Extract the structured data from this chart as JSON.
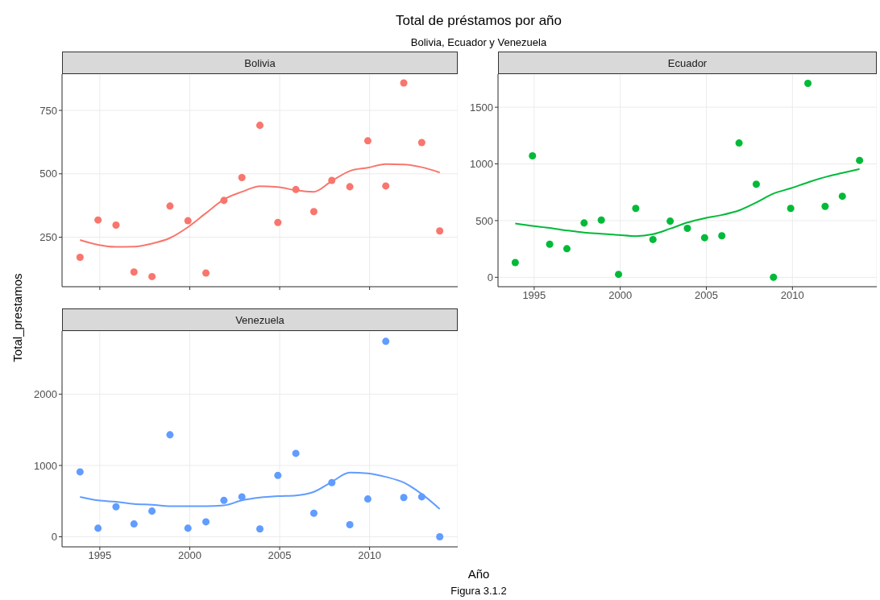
{
  "chart_data": [
    {
      "type": "other",
      "title": "Total de préstamos por año",
      "subtitle": "Bolivia, Ecuador y Venezuela",
      "xlabel": "Año",
      "ylabel": "Total_prestamos",
      "annotations": [
        "Figura 3.1.2"
      ]
    },
    {
      "type": "scatter",
      "title": "Bolivia",
      "x": [
        1993.9,
        1994.9,
        1995.9,
        1996.9,
        1997.9,
        1998.9,
        1999.9,
        2000.9,
        2001.9,
        2002.9,
        2003.9,
        2004.9,
        2005.9,
        2006.9,
        2007.9,
        2008.9,
        2009.9,
        2010.9,
        2011.9,
        2012.9,
        2013.9
      ],
      "xlim": [
        1992.9,
        2014.9
      ],
      "xticks": [
        1995,
        2000,
        2005,
        2010
      ],
      "ylim": [
        55,
        893
      ],
      "yticks": [
        250,
        500,
        750
      ],
      "grid": true,
      "marker": "circle",
      "tick_labels": "y",
      "series": [
        {
          "color": "#f8766d",
          "values": [
            171,
            318,
            298,
            113,
            95,
            373,
            315,
            109,
            395,
            485,
            691,
            308,
            438,
            351,
            474,
            449,
            630,
            452,
            858,
            623,
            275
          ]
        },
        {
          "type": "line",
          "marker": "none",
          "color": "#f8766d",
          "values": [
            239,
            220,
            212,
            213,
            225,
            247,
            290,
            345,
            399,
            429,
            451,
            448,
            435,
            429,
            472,
            511,
            524,
            538,
            537,
            526,
            505
          ]
        }
      ]
    },
    {
      "type": "scatter",
      "title": "Ecuador",
      "x": [
        1993.9,
        1994.9,
        1995.9,
        1996.9,
        1997.9,
        1998.9,
        1999.9,
        2000.9,
        2001.9,
        2002.9,
        2003.9,
        2004.9,
        2005.9,
        2006.9,
        2007.9,
        2008.9,
        2009.9,
        2010.9,
        2011.9,
        2012.9,
        2013.9
      ],
      "xlim": [
        1992.9,
        2014.9
      ],
      "xticks": [
        1995,
        2000,
        2005,
        2010
      ],
      "ylim": [
        -83,
        1792
      ],
      "yticks": [
        0,
        500,
        1000,
        1500
      ],
      "grid": true,
      "marker": "circle",
      "series": [
        {
          "color": "#00ba38",
          "values": [
            130,
            1071,
            292,
            252,
            479,
            505,
            26,
            608,
            333,
            495,
            432,
            349,
            366,
            1184,
            821,
            0,
            608,
            1710,
            625,
            715,
            1031
          ]
        },
        {
          "type": "line",
          "marker": "none",
          "color": "#00ba38",
          "values": [
            474,
            453,
            436,
            413,
            394,
            384,
            373,
            363,
            380,
            429,
            483,
            521,
            550,
            590,
            660,
            738,
            785,
            837,
            884,
            920,
            955
          ]
        }
      ]
    },
    {
      "type": "scatter",
      "title": "Venezuela",
      "x": [
        1993.9,
        1994.9,
        1995.9,
        1996.9,
        1997.9,
        1998.9,
        1999.9,
        2000.9,
        2001.9,
        2002.9,
        2003.9,
        2004.9,
        2005.9,
        2006.9,
        2007.9,
        2008.9,
        2009.9,
        2010.9,
        2011.9,
        2012.9,
        2013.9
      ],
      "xlim": [
        1992.9,
        2014.9
      ],
      "xticks": [
        1995,
        2000,
        2005,
        2010
      ],
      "ylim": [
        -141,
        2885
      ],
      "yticks": [
        0,
        1000,
        2000
      ],
      "grid": true,
      "marker": "circle",
      "series": [
        {
          "color": "#619cff",
          "values": [
            910,
            120,
            420,
            180,
            360,
            1430,
            120,
            210,
            510,
            560,
            110,
            860,
            1170,
            330,
            760,
            170,
            530,
            2740,
            550,
            560,
            0
          ]
        },
        {
          "type": "line",
          "marker": "none",
          "color": "#619cff",
          "values": [
            560,
            510,
            490,
            460,
            450,
            430,
            430,
            430,
            440,
            510,
            550,
            570,
            580,
            630,
            770,
            900,
            890,
            840,
            760,
            600,
            390
          ]
        }
      ]
    }
  ]
}
